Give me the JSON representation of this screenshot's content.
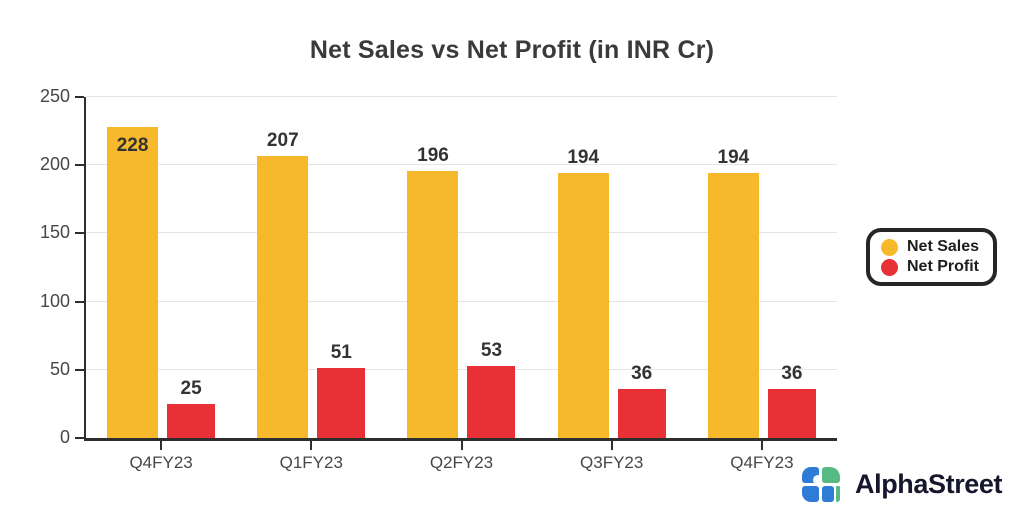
{
  "page": {
    "background": "#ffffff"
  },
  "chart_data": {
    "type": "bar",
    "title": "Net Sales vs Net Profit (in INR Cr)",
    "categories": [
      "Q4FY23",
      "Q1FY23",
      "Q2FY23",
      "Q3FY23",
      "Q4FY23"
    ],
    "series": [
      {
        "name": "Net Sales",
        "color": "#F6B92B",
        "values": [
          228,
          207,
          196,
          194,
          194
        ]
      },
      {
        "name": "Net Profit",
        "color": "#E73137",
        "values": [
          25,
          51,
          53,
          36,
          36
        ]
      }
    ],
    "ylim": [
      0,
      250
    ],
    "ytick_step": 50,
    "yticks": [
      0,
      50,
      100,
      150,
      200,
      250
    ],
    "grid": true,
    "legend_position": "middle-right",
    "value_labels": true
  },
  "colors": {
    "net_sales": "#F6B92B",
    "net_profit": "#E73137",
    "axis": "#2e2e2e",
    "gridline": "#e4e4e4",
    "logo_blue": "#2E7CD6",
    "logo_green": "#57B983"
  },
  "branding": {
    "logo_text": "AlphaStreet"
  }
}
